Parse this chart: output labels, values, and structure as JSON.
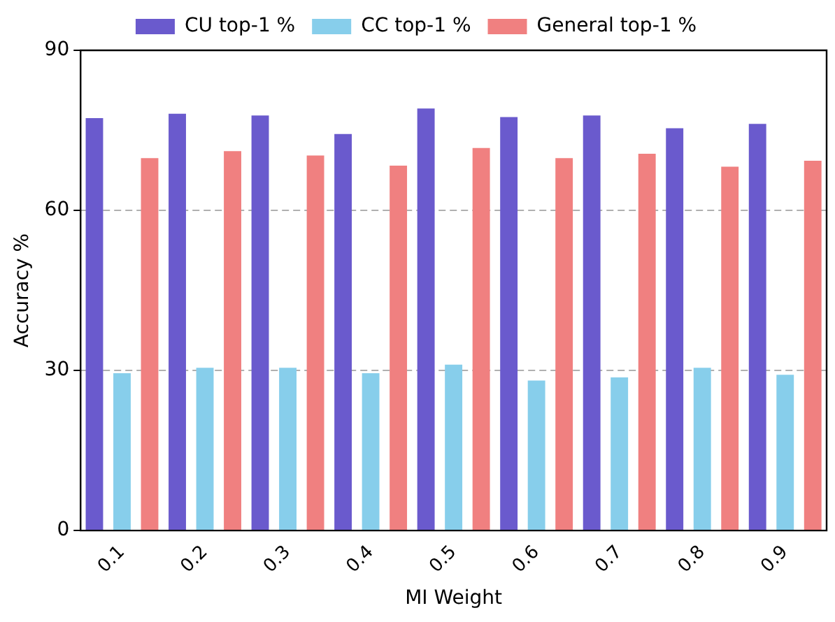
{
  "chart_data": {
    "type": "bar",
    "xlabel": "MI Weight",
    "ylabel": "Accuracy %",
    "categories": [
      "0.1",
      "0.2",
      "0.3",
      "0.4",
      "0.5",
      "0.6",
      "0.7",
      "0.8",
      "0.9"
    ],
    "series": [
      {
        "name": "CU top-1 %",
        "color": "#6a5acd",
        "values": [
          77.3,
          78.1,
          77.8,
          74.3,
          79.1,
          77.5,
          77.8,
          75.4,
          76.2
        ]
      },
      {
        "name": "CC top-1 %",
        "color": "#87ceeb",
        "values": [
          29.5,
          30.5,
          30.5,
          29.5,
          31.1,
          28.1,
          28.7,
          30.5,
          29.2
        ]
      },
      {
        "name": "General top-1 %",
        "color": "#f08080",
        "values": [
          69.8,
          71.1,
          70.3,
          68.4,
          71.7,
          69.8,
          70.6,
          68.2,
          69.3
        ]
      }
    ],
    "ylim": [
      0,
      90
    ],
    "yticks": [
      0,
      30,
      60,
      90
    ],
    "grid": "y",
    "legend": "top"
  }
}
